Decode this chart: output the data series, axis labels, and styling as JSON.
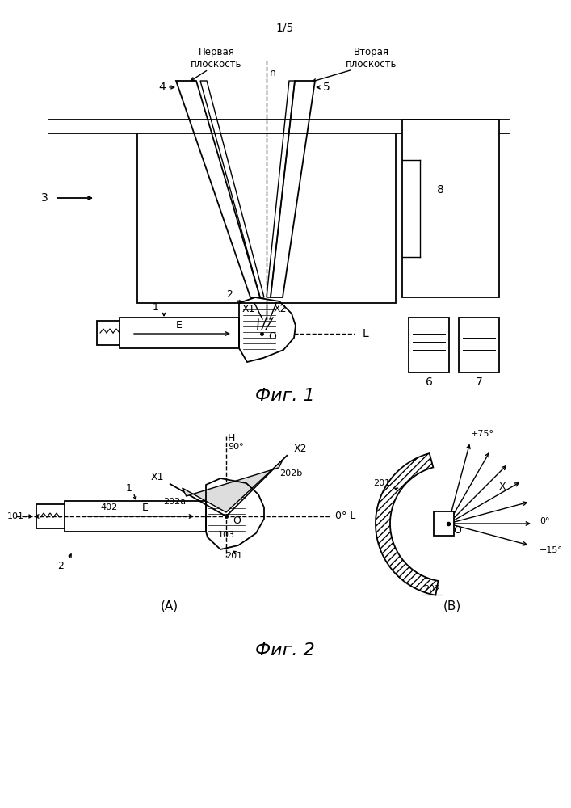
{
  "page_label": "1/5",
  "fig1_caption": "Фиг. 1",
  "fig2_caption": "Фиг. 2",
  "label_pervaya": "Первая\nплоскость",
  "label_vtoraya": "Вторая\nплоскость",
  "bg_color": "#ffffff",
  "line_color": "#000000"
}
